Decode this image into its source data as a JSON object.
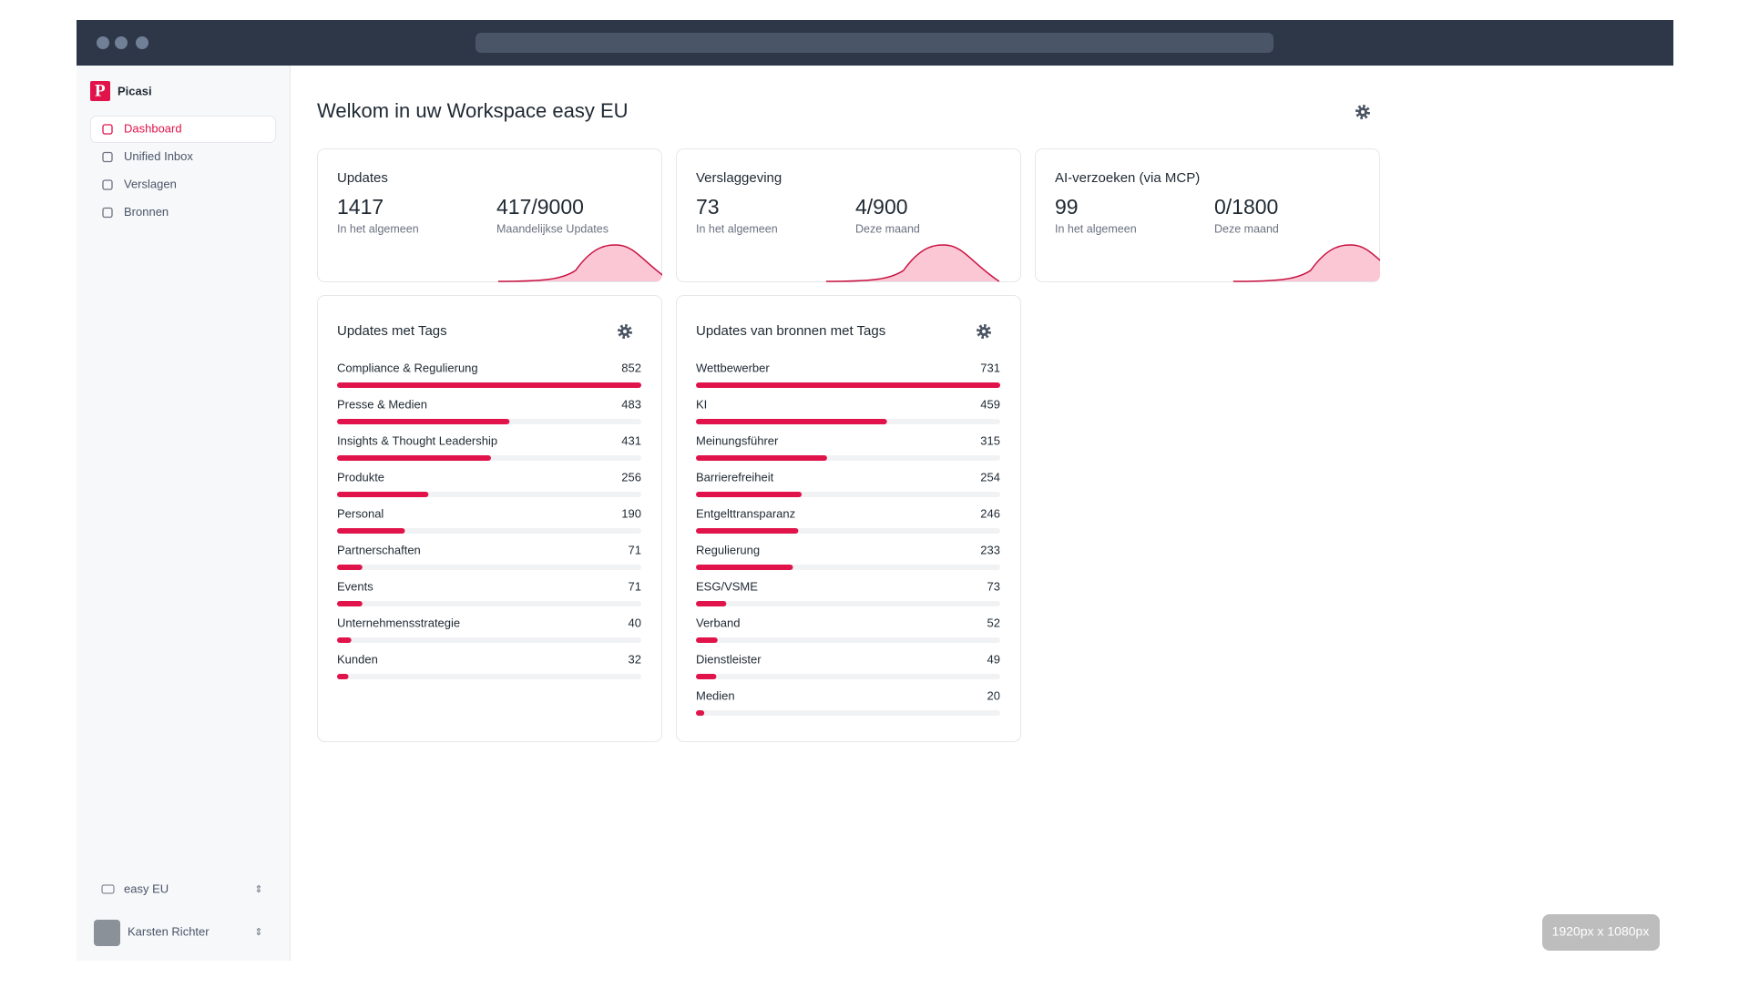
{
  "browser": {
    "badge": "1920px x 1080px"
  },
  "sidebar": {
    "brand": "Picasi",
    "nav": [
      "Dashboard",
      "Unified Inbox",
      "Verslagen",
      "Bronnen"
    ],
    "workspace": "easy EU",
    "user": "Karsten Richter"
  },
  "main": {
    "title": "Welkom in uw Workspace easy EU",
    "stats": [
      {
        "title": "Updates",
        "total": 1417,
        "total_label": "In het algemeen",
        "period": "417/9000",
        "period_label": "Maandelijkse Updates"
      },
      {
        "title": "Verslaggeving",
        "total": 73,
        "total_label": "In het algemeen",
        "period": "4/900",
        "period_label": "Deze maand"
      },
      {
        "title": "AI-verzoeken (via MCP)",
        "total": 99,
        "total_label": "In het algemeen",
        "period": "0/1800",
        "period_label": "Deze maand"
      }
    ],
    "tag_cards": [
      {
        "title": "Updates met Tags",
        "color": "#e0134a",
        "categories": [
          "Compliance & Regulierung",
          "Presse & Medien",
          "Insights & Thought Leadership",
          "Produkte",
          "Personal",
          "Partnerschaften",
          "Events",
          "Unternehmensstrategie",
          "Kunden"
        ],
        "values": [
          852,
          483,
          431,
          256,
          190,
          71,
          71,
          40,
          32
        ]
      },
      {
        "title": "Updates van bronnen met Tags",
        "color": "#e0134a",
        "categories": [
          "Wettbewerber",
          "KI",
          "Meinungsführer",
          "Barrierefreiheit",
          "Entgelttransparanz",
          "Regulierung",
          "ESG/VSME",
          "Verband",
          "Dienstleister",
          "Medien"
        ],
        "values": [
          731,
          459,
          315,
          254,
          246,
          233,
          73,
          52,
          49,
          20
        ]
      }
    ]
  }
}
